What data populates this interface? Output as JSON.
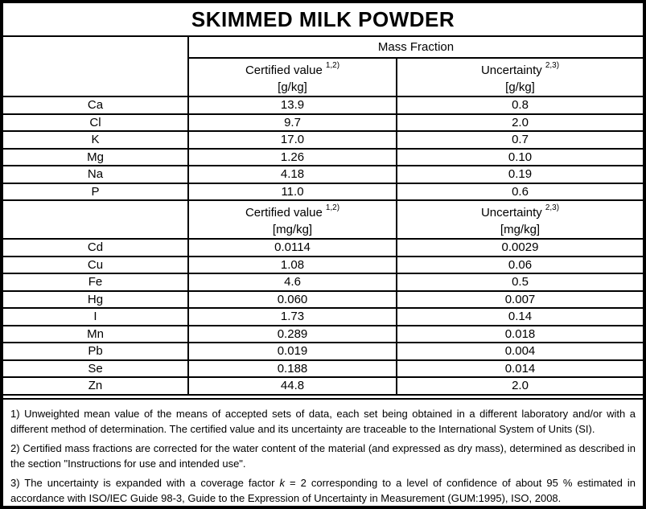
{
  "page": {
    "title": "SKIMMED MILK POWDER"
  },
  "table": {
    "group_header": "Mass Fraction",
    "gkg": {
      "certified": {
        "label": "Certified value",
        "footnote_ref": "1,2)",
        "unit": "[g/kg]"
      },
      "uncertainty": {
        "label": "Uncertainty",
        "footnote_ref": "2,3)",
        "unit": "[g/kg]"
      },
      "rows": [
        {
          "element": "Ca",
          "value": "13.9",
          "uncertainty": "0.8"
        },
        {
          "element": "Cl",
          "value": "9.7",
          "uncertainty": "2.0"
        },
        {
          "element": "K",
          "value": "17.0",
          "uncertainty": "0.7"
        },
        {
          "element": "Mg",
          "value": "1.26",
          "uncertainty": "0.10"
        },
        {
          "element": "Na",
          "value": "4.18",
          "uncertainty": "0.19"
        },
        {
          "element": "P",
          "value": "11.0",
          "uncertainty": "0.6"
        }
      ]
    },
    "mgkg": {
      "certified": {
        "label": "Certified value",
        "footnote_ref": "1,2)",
        "unit": "[mg/kg]"
      },
      "uncertainty": {
        "label": "Uncertainty",
        "footnote_ref": "2,3)",
        "unit": "[mg/kg]"
      },
      "rows": [
        {
          "element": "Cd",
          "value": "0.0114",
          "uncertainty": "0.0029"
        },
        {
          "element": "Cu",
          "value": "1.08",
          "uncertainty": "0.06"
        },
        {
          "element": "Fe",
          "value": "4.6",
          "uncertainty": "0.5"
        },
        {
          "element": "Hg",
          "value": "0.060",
          "uncertainty": "0.007"
        },
        {
          "element": "I",
          "value": "1.73",
          "uncertainty": "0.14"
        },
        {
          "element": "Mn",
          "value": "0.289",
          "uncertainty": "0.018"
        },
        {
          "element": "Pb",
          "value": "0.019",
          "uncertainty": "0.004"
        },
        {
          "element": "Se",
          "value": "0.188",
          "uncertainty": "0.014"
        },
        {
          "element": "Zn",
          "value": "44.8",
          "uncertainty": "2.0"
        }
      ]
    }
  },
  "footnotes": [
    {
      "text": "1) Unweighted mean value of the means of accepted sets of data, each set being obtained in a different laboratory and/or with a different method of determination. The certified value and its uncertainty are traceable to the International System of Units (SI)."
    },
    {
      "text": "2) Certified mass fractions are corrected for the water content of the material (and expressed as dry mass), determined as described in the section \"Instructions for use and intended use\"."
    },
    {
      "pre": "3) The uncertainty is expanded with a coverage factor ",
      "italic": "k",
      "post": " = 2 corresponding to a level of confidence of about 95 % estimated in accordance with ISO/IEC Guide 98-3, Guide to the Expression of Uncertainty in Measurement (GUM:1995), ISO, 2008."
    }
  ],
  "colors": {
    "border": "#000000",
    "text": "#000000",
    "background": "#ffffff"
  }
}
